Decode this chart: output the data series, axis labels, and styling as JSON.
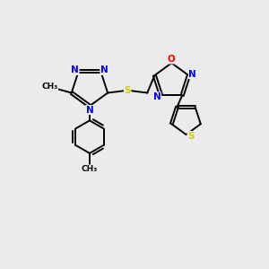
{
  "bg_color": "#ebebeb",
  "bond_color": "#000000",
  "n_color": "#0000ff",
  "o_color": "#ff0000",
  "s_color": "#cccc00",
  "lw": 1.4,
  "fs": 7.5,
  "figsize": [
    3.0,
    3.0
  ],
  "dpi": 100,
  "xlim": [
    0,
    10
  ],
  "ylim": [
    0,
    10
  ]
}
